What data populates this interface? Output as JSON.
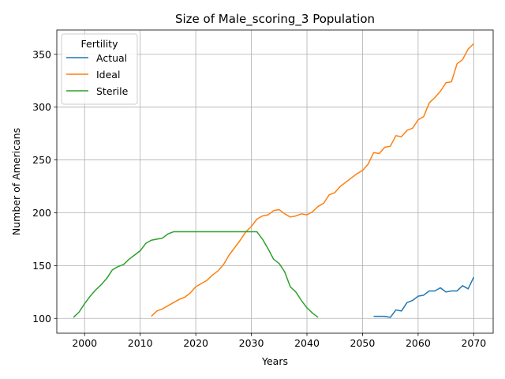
{
  "chart_data": {
    "type": "line",
    "title": "Size of Male_scoring_3 Population",
    "xlabel": "Years",
    "ylabel": "Number of Americans",
    "xlim": [
      1995,
      2073.5
    ],
    "ylim": [
      86,
      373
    ],
    "xticks": [
      2000,
      2010,
      2020,
      2030,
      2040,
      2050,
      2060,
      2070
    ],
    "yticks": [
      100,
      150,
      200,
      250,
      300,
      350
    ],
    "grid": true,
    "legend": {
      "title": "Fertility",
      "placement": "top-left"
    },
    "series": [
      {
        "name": "Actual",
        "color": "#1f77b4",
        "x": [
          2052,
          2053,
          2054,
          2055,
          2056,
          2057,
          2058,
          2059,
          2060,
          2061,
          2062,
          2063,
          2064,
          2065,
          2066,
          2067,
          2068,
          2069,
          2070
        ],
        "y": [
          102,
          102,
          102,
          101,
          108,
          107,
          115,
          117,
          121,
          122,
          126,
          126,
          129,
          125,
          126,
          126,
          131,
          128,
          139
        ]
      },
      {
        "name": "Ideal",
        "color": "#ff7f0e",
        "x": [
          2012,
          2013,
          2014,
          2015,
          2016,
          2017,
          2018,
          2019,
          2020,
          2021,
          2022,
          2023,
          2024,
          2025,
          2026,
          2027,
          2028,
          2029,
          2030,
          2031,
          2032,
          2033,
          2034,
          2035,
          2036,
          2037,
          2038,
          2039,
          2040,
          2041,
          2042,
          2043,
          2044,
          2045,
          2046,
          2047,
          2048,
          2049,
          2050,
          2051,
          2052,
          2053,
          2054,
          2055,
          2056,
          2057,
          2058,
          2059,
          2060,
          2061,
          2062,
          2063,
          2064,
          2065,
          2066,
          2067,
          2068,
          2069,
          2070
        ],
        "y": [
          102,
          107,
          109,
          112,
          115,
          118,
          120,
          124,
          130,
          133,
          136,
          141,
          145,
          151,
          160,
          167,
          174,
          182,
          187,
          194,
          197,
          198,
          202,
          203,
          199,
          196,
          197,
          199,
          198,
          201,
          206,
          209,
          217,
          219,
          225,
          229,
          233,
          237,
          240,
          246,
          257,
          256,
          262,
          263,
          273,
          272,
          278,
          280,
          288,
          291,
          304,
          309,
          315,
          323,
          324,
          341,
          345,
          355,
          360
        ]
      },
      {
        "name": "Sterile",
        "color": "#2ca02c",
        "x": [
          1998,
          1999,
          2000,
          2001,
          2002,
          2003,
          2004,
          2005,
          2006,
          2007,
          2008,
          2009,
          2010,
          2011,
          2012,
          2013,
          2014,
          2015,
          2016,
          2017,
          2018,
          2019,
          2020,
          2021,
          2022,
          2023,
          2024,
          2025,
          2026,
          2027,
          2028,
          2029,
          2030,
          2031,
          2032,
          2033,
          2034,
          2035,
          2036,
          2037,
          2038,
          2039,
          2040,
          2041,
          2042
        ],
        "y": [
          101,
          106,
          114,
          121,
          127,
          132,
          138,
          146,
          149,
          151,
          156,
          160,
          164,
          171,
          174,
          175,
          176,
          180,
          182,
          182,
          182,
          182,
          182,
          182,
          182,
          182,
          182,
          182,
          182,
          182,
          182,
          182,
          182,
          182,
          175,
          166,
          156,
          152,
          144,
          130,
          125,
          117,
          110,
          105,
          101
        ]
      }
    ]
  }
}
